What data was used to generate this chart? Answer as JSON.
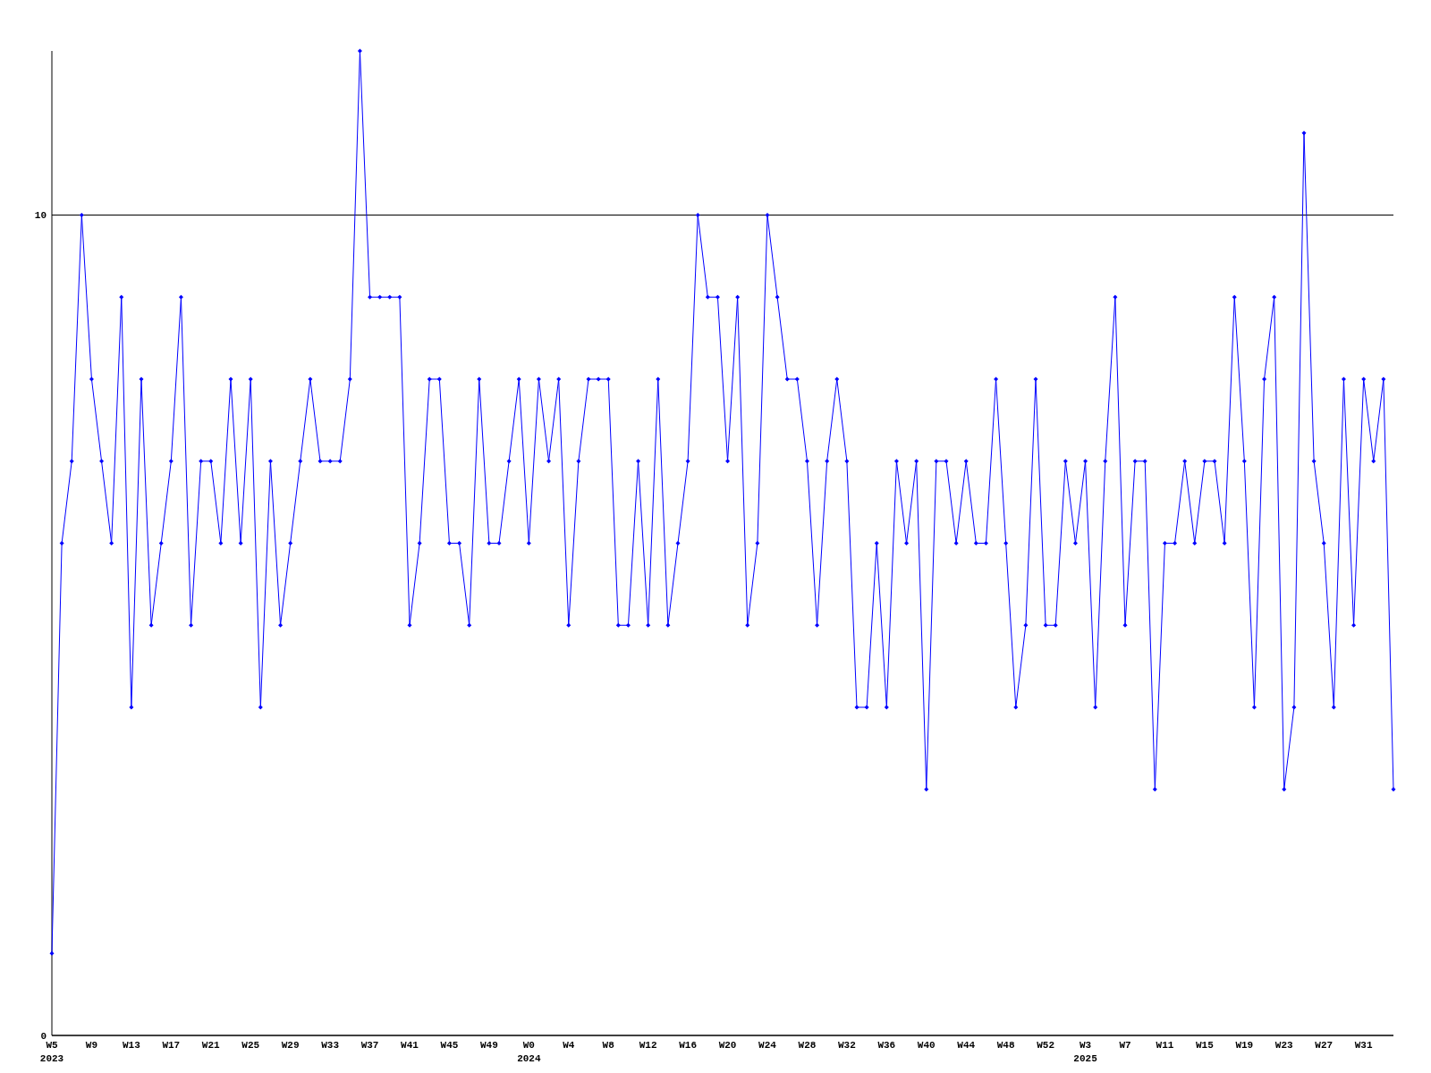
{
  "chart_data": {
    "type": "line",
    "categories": [
      "W5 2023",
      null,
      null,
      null,
      "W9",
      null,
      null,
      null,
      "W13",
      null,
      null,
      null,
      "W17",
      null,
      null,
      null,
      "W21",
      null,
      null,
      null,
      "W25",
      null,
      null,
      null,
      "W29",
      null,
      null,
      null,
      "W33",
      null,
      null,
      null,
      "W37",
      null,
      null,
      null,
      "W41",
      null,
      null,
      null,
      "W45",
      null,
      null,
      null,
      "W49",
      null,
      null,
      null,
      "W0 2024",
      null,
      null,
      null,
      "W4",
      null,
      null,
      null,
      "W8",
      null,
      null,
      null,
      "W12",
      null,
      null,
      null,
      "W16",
      null,
      null,
      null,
      "W20",
      null,
      null,
      null,
      "W24",
      null,
      null,
      null,
      "W28",
      null,
      null,
      null,
      "W32",
      null,
      null,
      null,
      "W36",
      null,
      null,
      null,
      "W40",
      null,
      null,
      null,
      "W44",
      null,
      null,
      null,
      "W48",
      null,
      null,
      null,
      "W52",
      null,
      null,
      null,
      "W3 2025",
      null,
      null,
      null,
      "W7",
      null,
      null,
      null,
      "W11",
      null,
      null,
      null,
      "W15",
      null,
      null,
      null,
      "W19",
      null,
      null,
      null,
      "W23",
      null,
      null,
      null,
      "W27",
      null,
      null,
      null,
      "W31",
      null,
      null,
      null
    ],
    "series": [
      {
        "color": "#0000ff",
        "values": [
          1,
          6,
          7,
          10,
          8,
          7,
          6,
          9,
          4,
          8,
          5,
          6,
          7,
          9,
          5,
          7,
          7,
          6,
          8,
          6,
          8,
          4,
          7,
          5,
          6,
          7,
          8,
          7,
          7,
          7,
          8,
          12,
          9,
          9,
          9,
          9,
          5,
          6,
          8,
          8,
          6,
          6,
          5,
          8,
          6,
          6,
          7,
          8,
          6,
          8,
          7,
          8,
          5,
          7,
          8,
          8,
          8,
          5,
          5,
          7,
          5,
          8,
          5,
          6,
          7,
          10,
          9,
          9,
          7,
          9,
          5,
          6,
          10,
          9,
          8,
          8,
          7,
          5,
          7,
          8,
          7,
          4,
          4,
          6,
          4,
          7,
          6,
          7,
          3,
          7,
          7,
          6,
          7,
          6,
          6,
          8,
          6,
          4,
          5,
          8,
          5,
          5,
          7,
          6,
          7,
          4,
          7,
          9,
          5,
          7,
          7,
          3,
          6,
          6,
          7,
          6,
          7,
          7,
          6,
          9,
          7,
          4,
          8,
          9,
          3,
          4,
          11,
          7,
          6,
          4,
          8,
          5,
          8,
          7,
          8,
          3
        ]
      }
    ],
    "ylim": [
      0,
      12
    ],
    "yticks": [
      0,
      10
    ],
    "grid": "y",
    "marker": "diamond",
    "line_style": "solid"
  }
}
